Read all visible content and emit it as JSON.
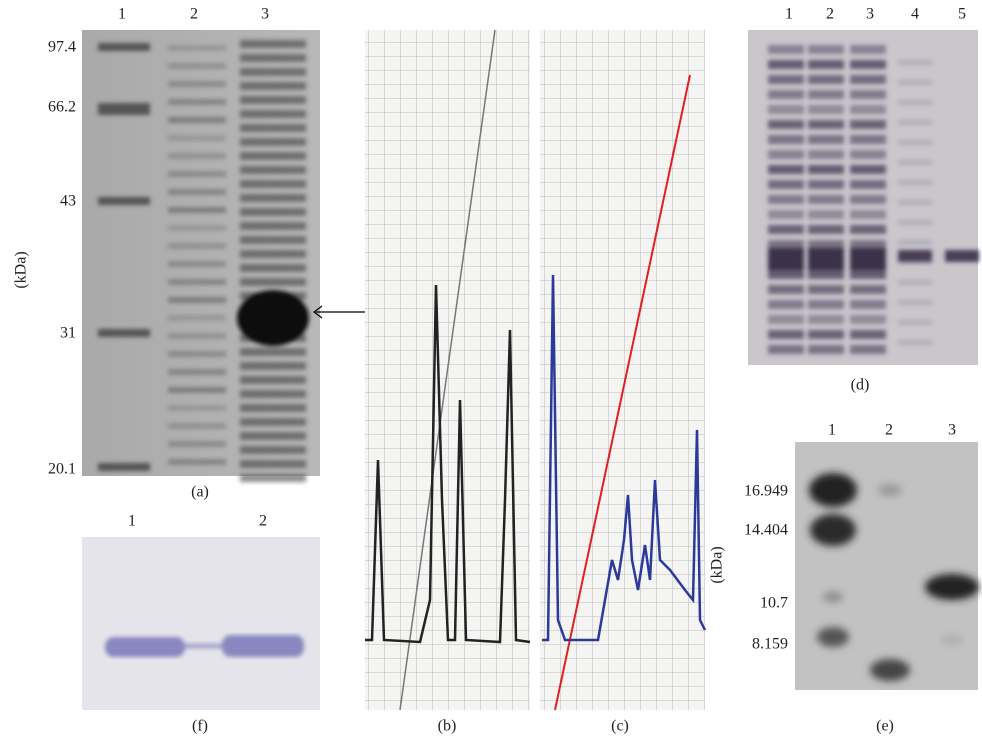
{
  "panels": {
    "a": {
      "lanes": [
        "1",
        "2",
        "3"
      ],
      "markers": [
        "97.4",
        "66.2",
        "43",
        "31",
        "20.1"
      ],
      "axis_label": "(kDa)",
      "caption": "(a)"
    },
    "b": {
      "caption": "(b)"
    },
    "c": {
      "caption": "(c)"
    },
    "d": {
      "lanes": [
        "1",
        "2",
        "3",
        "4",
        "5"
      ],
      "caption": "(d)"
    },
    "e": {
      "lanes": [
        "1",
        "2",
        "3"
      ],
      "markers": [
        "16.949",
        "14.404",
        "10.7",
        "8.159"
      ],
      "axis_label": "(kDa)",
      "caption": "(e)"
    },
    "f": {
      "lanes": [
        "1",
        "2"
      ],
      "caption": "(f)"
    }
  }
}
